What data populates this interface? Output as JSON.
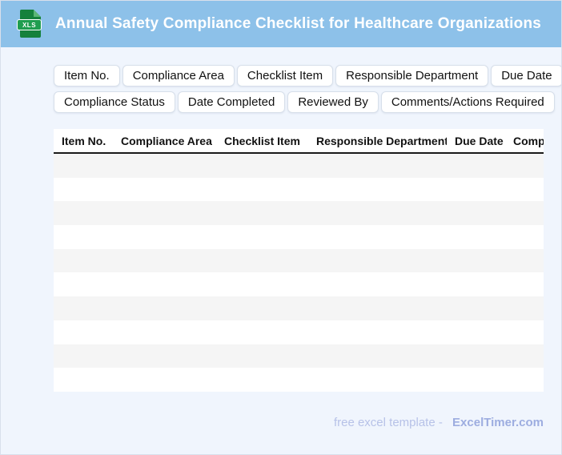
{
  "header": {
    "title": "Annual Safety Compliance Checklist for Healthcare Organizations",
    "file_badge": "XLS"
  },
  "chips": {
    "row1": [
      "Item No.",
      "Compliance Area",
      "Checklist Item",
      "Responsible Department",
      "Due Date"
    ],
    "row2": [
      "Compliance Status",
      "Date Completed",
      "Reviewed By",
      "Comments/Actions Required"
    ]
  },
  "table": {
    "columns": [
      "Item No.",
      "Compliance Area",
      "Checklist Item",
      "Responsible Department",
      "Due Date",
      "Comp"
    ],
    "row_count": 10
  },
  "footer": {
    "text": "free excel template -",
    "brand": "ExcelTimer.com"
  },
  "colors": {
    "header_bg": "#8dc1e9",
    "page_bg": "#f0f5fd",
    "row_stripe": "#f5f5f5",
    "icon_green": "#15813c",
    "badge_green": "#1f9d4f",
    "footer_text": "#b7c2e8",
    "footer_brand": "#9dade0"
  }
}
